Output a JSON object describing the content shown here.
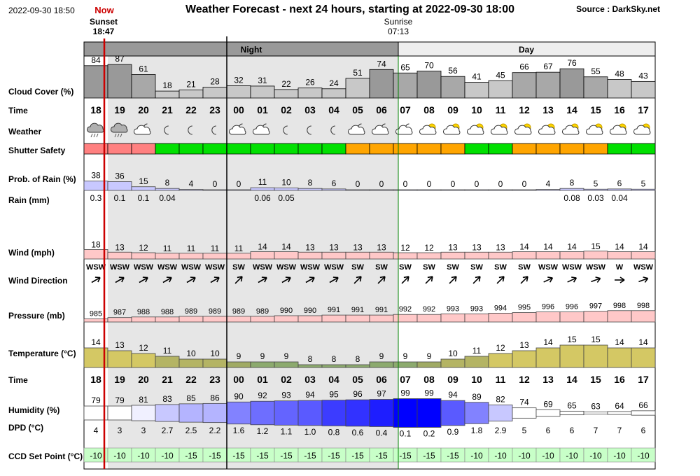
{
  "header": {
    "datetime": "2022-09-30 18:50",
    "now_label": "Now",
    "title": "Weather Forecast - next 24 hours, starting at 2022-09-30 18:00",
    "source": "Source : DarkSky.net",
    "sunset_label": "Sunset",
    "sunset_time": "18:47",
    "sunrise_label": "Sunrise",
    "sunrise_time": "07:13",
    "night_label": "Night",
    "day_label": "Day"
  },
  "row_labels": {
    "cloud": "Cloud Cover (%)",
    "time": "Time",
    "weather": "Weather",
    "shutter": "Shutter Safety",
    "rain_prob": "Prob. of Rain (%)",
    "rain": "Rain (mm)",
    "wind": "Wind (mph)",
    "wind_dir": "Wind Direction",
    "pressure": "Pressure (mb)",
    "temperature": "Temperature (°C)",
    "time2": "Time",
    "humidity": "Humidity (%)",
    "dpd": "DPD (°C)",
    "ccd": "CCD Set Point (°C)"
  },
  "colors": {
    "night_bg": "#e6e6e6",
    "night_band": "#999999",
    "day_band": "#eeeeee",
    "day_line": "#008000",
    "now_line": "#cc0000",
    "cloud_dark": "#999999",
    "cloud_light": "#c8c8c8",
    "shutter_red": "#ff8080",
    "shutter_green": "#00e000",
    "shutter_orange": "#ffa500",
    "rain_bar": "#c8c8ff",
    "wind_bar": "#ffc8c8",
    "ccd_bg": "#c8ffc8"
  },
  "chart_data": {
    "type": "table",
    "hours": [
      "18",
      "19",
      "20",
      "21",
      "22",
      "23",
      "00",
      "01",
      "02",
      "03",
      "04",
      "05",
      "06",
      "07",
      "08",
      "09",
      "10",
      "11",
      "12",
      "13",
      "14",
      "15",
      "16",
      "17"
    ],
    "cloud_cover": [
      84,
      87,
      61,
      18,
      21,
      28,
      32,
      31,
      22,
      26,
      24,
      51,
      74,
      65,
      70,
      56,
      41,
      45,
      66,
      67,
      76,
      55,
      48,
      43
    ],
    "weather_icons": [
      "rain-cloud-icon",
      "rain-cloud-icon",
      "partly-cloudy-night-icon",
      "clear-night-icon",
      "clear-night-icon",
      "clear-night-icon",
      "partly-cloudy-night-icon",
      "partly-cloudy-night-icon",
      "clear-night-icon",
      "clear-night-icon",
      "clear-night-icon",
      "partly-cloudy-night-icon",
      "partly-cloudy-night-icon",
      "partly-cloudy-night-icon",
      "partly-cloudy-day-icon",
      "partly-cloudy-day-icon",
      "partly-cloudy-day-icon",
      "partly-cloudy-day-icon",
      "partly-cloudy-day-icon",
      "partly-cloudy-day-icon",
      "partly-cloudy-day-icon",
      "partly-cloudy-day-icon",
      "partly-cloudy-day-icon",
      "partly-cloudy-day-icon"
    ],
    "shutter_safety": [
      "red",
      "red",
      "red",
      "green",
      "green",
      "green",
      "green",
      "green",
      "green",
      "green",
      "green",
      "orange",
      "orange",
      "orange",
      "orange",
      "orange",
      "green",
      "green",
      "orange",
      "orange",
      "orange",
      "orange",
      "green",
      "green"
    ],
    "rain_probability": [
      38,
      36,
      15,
      8,
      4,
      0,
      0,
      11,
      10,
      8,
      6,
      0,
      0,
      0,
      0,
      0,
      0,
      0,
      0,
      4,
      8,
      5,
      6,
      5
    ],
    "rain_mm": [
      "0.3",
      "0.1",
      "0.1",
      "0.04",
      "",
      "",
      "",
      "0.06",
      "0.05",
      "",
      "",
      "",
      "",
      "",
      "",
      "",
      "",
      "",
      "",
      "",
      "0.08",
      "0.03",
      "0.04",
      ""
    ],
    "wind_mph": [
      18,
      13,
      12,
      11,
      11,
      11,
      11,
      14,
      14,
      13,
      13,
      13,
      13,
      12,
      12,
      13,
      13,
      13,
      14,
      14,
      14,
      15,
      14,
      14
    ],
    "wind_direction": [
      "WSW",
      "WSW",
      "WSW",
      "WSW",
      "WSW",
      "WSW",
      "SW",
      "WSW",
      "WSW",
      "WSW",
      "WSW",
      "SW",
      "SW",
      "SW",
      "SW",
      "SW",
      "SW",
      "SW",
      "SW",
      "WSW",
      "WSW",
      "WSW",
      "W",
      "WSW"
    ],
    "wind_arrow_deg": [
      60,
      60,
      60,
      60,
      60,
      60,
      45,
      60,
      60,
      60,
      60,
      45,
      45,
      45,
      45,
      45,
      45,
      45,
      45,
      65,
      65,
      70,
      90,
      70
    ],
    "pressure_mb": [
      985,
      987,
      988,
      988,
      989,
      989,
      989,
      989,
      990,
      990,
      991,
      991,
      991,
      992,
      992,
      993,
      993,
      994,
      995,
      996,
      996,
      997,
      998,
      998
    ],
    "temperature_c": [
      14,
      13,
      12,
      11,
      10,
      10,
      9,
      9,
      9,
      8,
      8,
      8,
      9,
      9,
      9,
      10,
      11,
      12,
      13,
      14,
      15,
      15,
      14,
      14
    ],
    "temperature_colors": [
      "#d4c864",
      "#d4c864",
      "#d4c864",
      "#b4b464",
      "#b4b464",
      "#b4b464",
      "#a0aa64",
      "#8caa6e",
      "#8caa6e",
      "#8caa6e",
      "#8caa6e",
      "#8caa6e",
      "#8caa6e",
      "#8caa6e",
      "#a0aa64",
      "#b4b464",
      "#b4b464",
      "#d4c864",
      "#d4c864",
      "#d4c864",
      "#d4c864",
      "#d4c864",
      "#d4c864",
      "#d4c864"
    ],
    "humidity_pct": [
      79,
      79,
      81,
      83,
      85,
      86,
      90,
      92,
      93,
      94,
      95,
      96,
      97,
      99,
      99,
      94,
      89,
      82,
      74,
      69,
      65,
      63,
      64,
      66
    ],
    "humidity_colors": [
      "#ffffff",
      "#ffffff",
      "#f0f0ff",
      "#c8c8ff",
      "#b4b4ff",
      "#b4b4ff",
      "#8282ff",
      "#6e6eff",
      "#6464ff",
      "#5a5aff",
      "#3c3cff",
      "#3232ff",
      "#1e1eff",
      "#0000ff",
      "#0000ff",
      "#5a5aff",
      "#8282ff",
      "#c8c8ff",
      "#ffffff",
      "#ffffff",
      "#ffffff",
      "#ffffff",
      "#ffffff",
      "#ffffff"
    ],
    "dpd_c": [
      "4",
      "3",
      "3",
      "2.7",
      "2.5",
      "2.2",
      "1.6",
      "1.2",
      "1.1",
      "1.0",
      "0.8",
      "0.6",
      "0.4",
      "0.1",
      "0.2",
      "0.9",
      "1.8",
      "2.9",
      "5",
      "6",
      "6",
      "7",
      "7",
      "6"
    ],
    "ccd_setpoint_c": [
      "-10",
      "-10",
      "-10",
      "-10",
      "-15",
      "-15",
      "-15",
      "-15",
      "-15",
      "-15",
      "-15",
      "-15",
      "-15",
      "-15",
      "-15",
      "-15",
      "-10",
      "-10",
      "-10",
      "-10",
      "-10",
      "-10",
      "-10",
      "-10"
    ]
  }
}
